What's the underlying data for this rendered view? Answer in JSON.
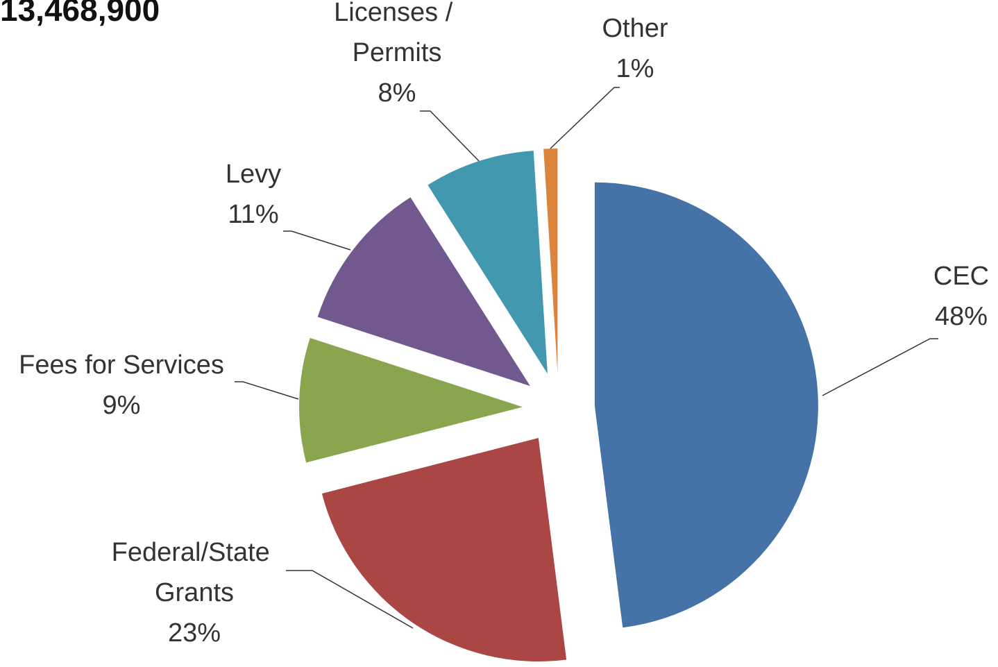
{
  "chart_data": {
    "type": "pie",
    "title": "13,468,900",
    "categories": [
      "CEC",
      "Federal/State Grants",
      "Fees for Services",
      "Levy",
      "Licenses / Permits",
      "Other"
    ],
    "values": [
      48,
      23,
      9,
      11,
      8,
      1
    ],
    "value_labels": [
      "48%",
      "23%",
      "9%",
      "11%",
      "8%",
      "1%"
    ],
    "colors": [
      "#4572a7",
      "#aa4643",
      "#89a54e",
      "#71588f",
      "#4198af",
      "#db843d"
    ]
  }
}
